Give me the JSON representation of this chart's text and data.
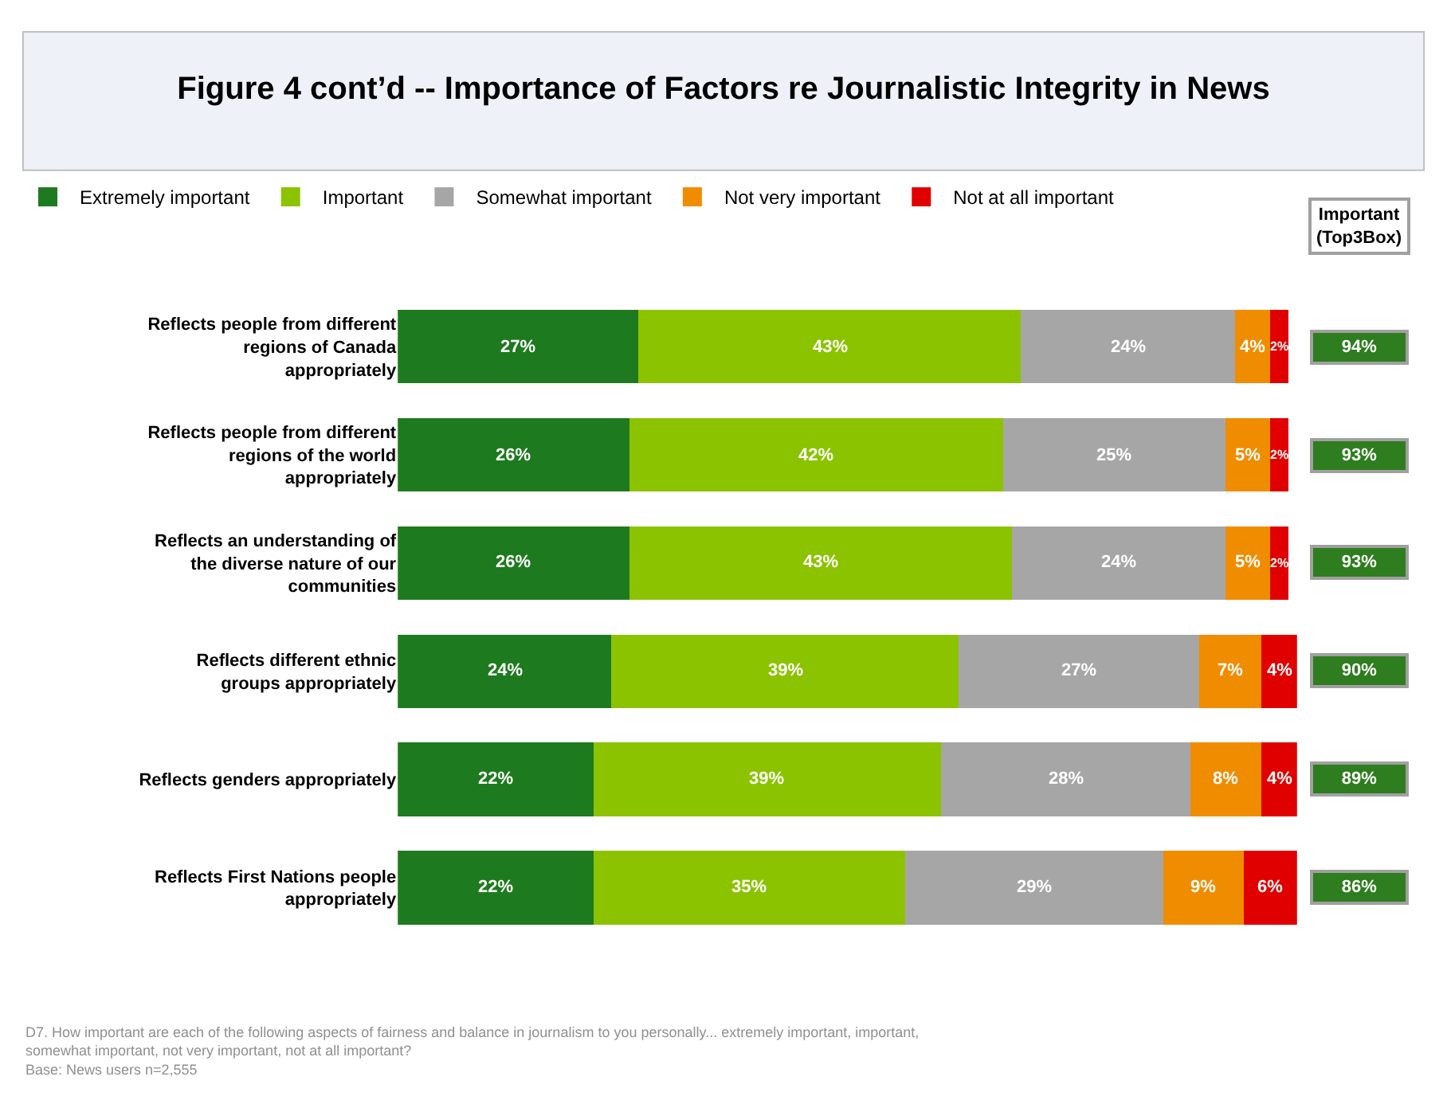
{
  "chart_data": {
    "type": "bar",
    "orientation": "horizontal",
    "stacked": true,
    "title": "Figure 4 cont’d -- Importance of Factors re Journalistic Integrity in News",
    "categories": [
      "Reflects people from different regions of Canada appropriately",
      "Reflects people from different regions of the world appropriately",
      "Reflects an understanding of the diverse nature of our communities",
      "Reflects different ethnic groups appropriately",
      "Reflects genders appropriately",
      "Reflects First Nations people appropriately"
    ],
    "series": [
      {
        "name": "Extremely important",
        "color": "#1e7a1e",
        "values": [
          27,
          26,
          26,
          24,
          22,
          22
        ],
        "value_labels": [
          "27%",
          "26%",
          "26%",
          "24%",
          "22%",
          "22%"
        ]
      },
      {
        "name": "Important",
        "color": "#8cc300",
        "values": [
          43,
          42,
          43,
          39,
          39,
          35
        ],
        "value_labels": [
          "43%",
          "42%",
          "43%",
          "39%",
          "39%",
          "35%"
        ]
      },
      {
        "name": "Somewhat important",
        "color": "#a6a6a6",
        "values": [
          24,
          25,
          24,
          27,
          28,
          29
        ],
        "value_labels": [
          "24%",
          "25%",
          "24%",
          "27%",
          "28%",
          "29%"
        ]
      },
      {
        "name": "Not very important",
        "color": "#f08c00",
        "values": [
          4,
          5,
          5,
          7,
          8,
          9
        ],
        "value_labels": [
          "4%",
          "5%",
          "5%",
          "7%",
          "8%",
          "9%"
        ]
      },
      {
        "name": "Not at all important",
        "color": "#e00000",
        "values": [
          2,
          2,
          2,
          4,
          4,
          6
        ],
        "value_labels": [
          "2%",
          "2%",
          "2%",
          "4%",
          "4%",
          "6%"
        ]
      }
    ],
    "legend": "top",
    "tick_labels": "y",
    "annotations": [
      "Important (Top3Box)",
      "94%",
      "93%",
      "93%",
      "90%",
      "89%",
      "86%",
      "D7. How important are each of the following aspects of fairness and balance in journalism to you personally... extremely important, important, somewhat important, not very important, not at all important?",
      "Base: News users n=2,555"
    ]
  }
}
